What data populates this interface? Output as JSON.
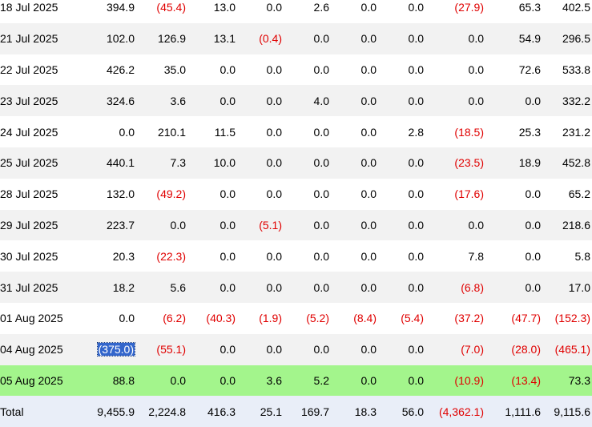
{
  "colors": {
    "negative": "#e00000",
    "alt_row": "#f2f2f2",
    "highlight_row": "#a3f58c",
    "total_row": "#e9eef8",
    "selection": "#3366cc"
  },
  "rows": [
    {
      "date": "18 Jul 2025",
      "values": [
        "394.9",
        "(45.4)",
        "13.0",
        "0.0",
        "2.6",
        "0.0",
        "0.0",
        "(27.9)",
        "65.3",
        "402.5"
      ]
    },
    {
      "date": "21 Jul 2025",
      "values": [
        "102.0",
        "126.9",
        "13.1",
        "(0.4)",
        "0.0",
        "0.0",
        "0.0",
        "0.0",
        "54.9",
        "296.5"
      ]
    },
    {
      "date": "22 Jul 2025",
      "values": [
        "426.2",
        "35.0",
        "0.0",
        "0.0",
        "0.0",
        "0.0",
        "0.0",
        "0.0",
        "72.6",
        "533.8"
      ]
    },
    {
      "date": "23 Jul 2025",
      "values": [
        "324.6",
        "3.6",
        "0.0",
        "0.0",
        "4.0",
        "0.0",
        "0.0",
        "0.0",
        "0.0",
        "332.2"
      ]
    },
    {
      "date": "24 Jul 2025",
      "values": [
        "0.0",
        "210.1",
        "11.5",
        "0.0",
        "0.0",
        "0.0",
        "2.8",
        "(18.5)",
        "25.3",
        "231.2"
      ]
    },
    {
      "date": "25 Jul 2025",
      "values": [
        "440.1",
        "7.3",
        "10.0",
        "0.0",
        "0.0",
        "0.0",
        "0.0",
        "(23.5)",
        "18.9",
        "452.8"
      ]
    },
    {
      "date": "28 Jul 2025",
      "values": [
        "132.0",
        "(49.2)",
        "0.0",
        "0.0",
        "0.0",
        "0.0",
        "0.0",
        "(17.6)",
        "0.0",
        "65.2"
      ]
    },
    {
      "date": "29 Jul 2025",
      "values": [
        "223.7",
        "0.0",
        "0.0",
        "(5.1)",
        "0.0",
        "0.0",
        "0.0",
        "0.0",
        "0.0",
        "218.6"
      ]
    },
    {
      "date": "30 Jul 2025",
      "values": [
        "20.3",
        "(22.3)",
        "0.0",
        "0.0",
        "0.0",
        "0.0",
        "0.0",
        "7.8",
        "0.0",
        "5.8"
      ]
    },
    {
      "date": "31 Jul 2025",
      "values": [
        "18.2",
        "5.6",
        "0.0",
        "0.0",
        "0.0",
        "0.0",
        "0.0",
        "(6.8)",
        "0.0",
        "17.0"
      ]
    },
    {
      "date": "01 Aug 2025",
      "values": [
        "0.0",
        "(6.2)",
        "(40.3)",
        "(1.9)",
        "(5.2)",
        "(8.4)",
        "(5.4)",
        "(37.2)",
        "(47.7)",
        "(152.3)"
      ]
    },
    {
      "date": "04 Aug 2025",
      "values": [
        "(375.0)",
        "(55.1)",
        "0.0",
        "0.0",
        "0.0",
        "0.0",
        "0.0",
        "(7.0)",
        "(28.0)",
        "(465.1)"
      ],
      "selected_col": 0
    },
    {
      "date": "05 Aug 2025",
      "values": [
        "88.8",
        "0.0",
        "0.0",
        "3.6",
        "5.2",
        "0.0",
        "0.0",
        "(10.9)",
        "(13.4)",
        "73.3"
      ],
      "highlight": true
    }
  ],
  "total": {
    "label": "Total",
    "values": [
      "9,455.9",
      "2,224.8",
      "416.3",
      "25.1",
      "169.7",
      "18.3",
      "56.0",
      "(4,362.1)",
      "1,111.6",
      "9,115.6"
    ]
  }
}
